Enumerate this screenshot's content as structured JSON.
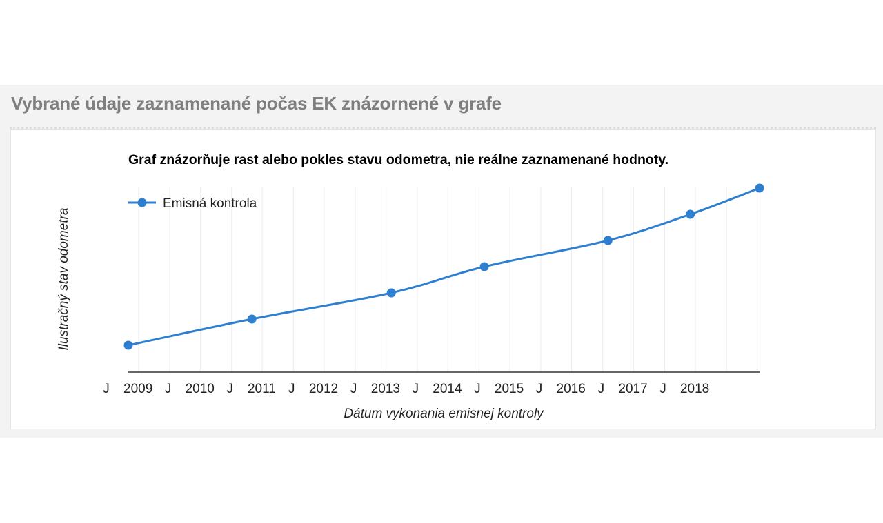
{
  "section": {
    "title": "Vybrané údaje zaznamenané počas EK znázornené v grafe"
  },
  "chart_data": {
    "type": "line",
    "title": "Graf znázorňuje rast alebo pokles stavu odometra, nie reálne zaznamenané hodnoty.",
    "xlabel": "Dátum vykonania emisnej kontroly",
    "ylabel": "Ilustračný stav odometra",
    "x_ticks": [
      "J",
      "2009",
      "J",
      "2010",
      "J",
      "2011",
      "J",
      "2012",
      "J",
      "2013",
      "J",
      "2014",
      "J",
      "2015",
      "J",
      "2016",
      "J",
      "2017",
      "J",
      "2018"
    ],
    "x_range": [
      "2008-05-01",
      "2018-07-15"
    ],
    "y_range": [
      0,
      7
    ],
    "legend_position": "top-left",
    "grid": "vertical",
    "series": [
      {
        "name": "Emisná kontrola",
        "color": "#2f7fd0",
        "x": [
          "2008-05-01",
          "2010-05-01",
          "2012-08-01",
          "2014-02-01",
          "2016-02-01",
          "2017-06-01",
          "2018-07-15"
        ],
        "y": [
          1,
          2,
          3,
          4,
          5,
          6,
          7
        ]
      }
    ]
  }
}
